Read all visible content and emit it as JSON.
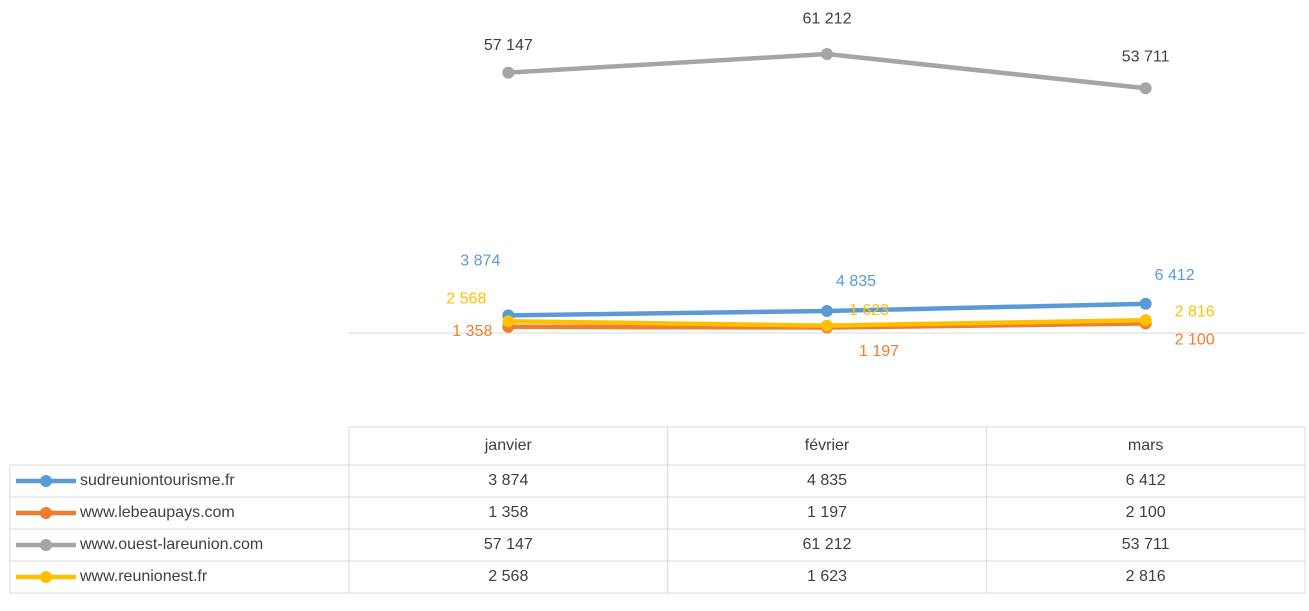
{
  "chart_data": {
    "type": "line",
    "categories": [
      "janvier",
      "février",
      "mars"
    ],
    "ylim": [
      0,
      70000
    ],
    "series": [
      {
        "name": "sudreuniontourisme.fr",
        "color": "#5b9bd5",
        "values": [
          3874,
          4835,
          6412
        ],
        "value_labels": [
          "3 874",
          "4 835",
          "6 412"
        ]
      },
      {
        "name": "www.lebeaupays.com",
        "color": "#ed7d31",
        "values": [
          1358,
          1197,
          2100
        ],
        "value_labels": [
          "1 358",
          "1 197",
          "2 100"
        ]
      },
      {
        "name": "www.ouest-lareunion.com",
        "color": "#a5a5a5",
        "values": [
          57147,
          61212,
          53711
        ],
        "value_labels": [
          "57 147",
          "61 212",
          "53 711"
        ]
      },
      {
        "name": "www.reunionest.fr",
        "color": "#ffc000",
        "values": [
          2568,
          1623,
          2816
        ],
        "value_labels": [
          "2 568",
          "1 623",
          "2 816"
        ]
      }
    ]
  }
}
